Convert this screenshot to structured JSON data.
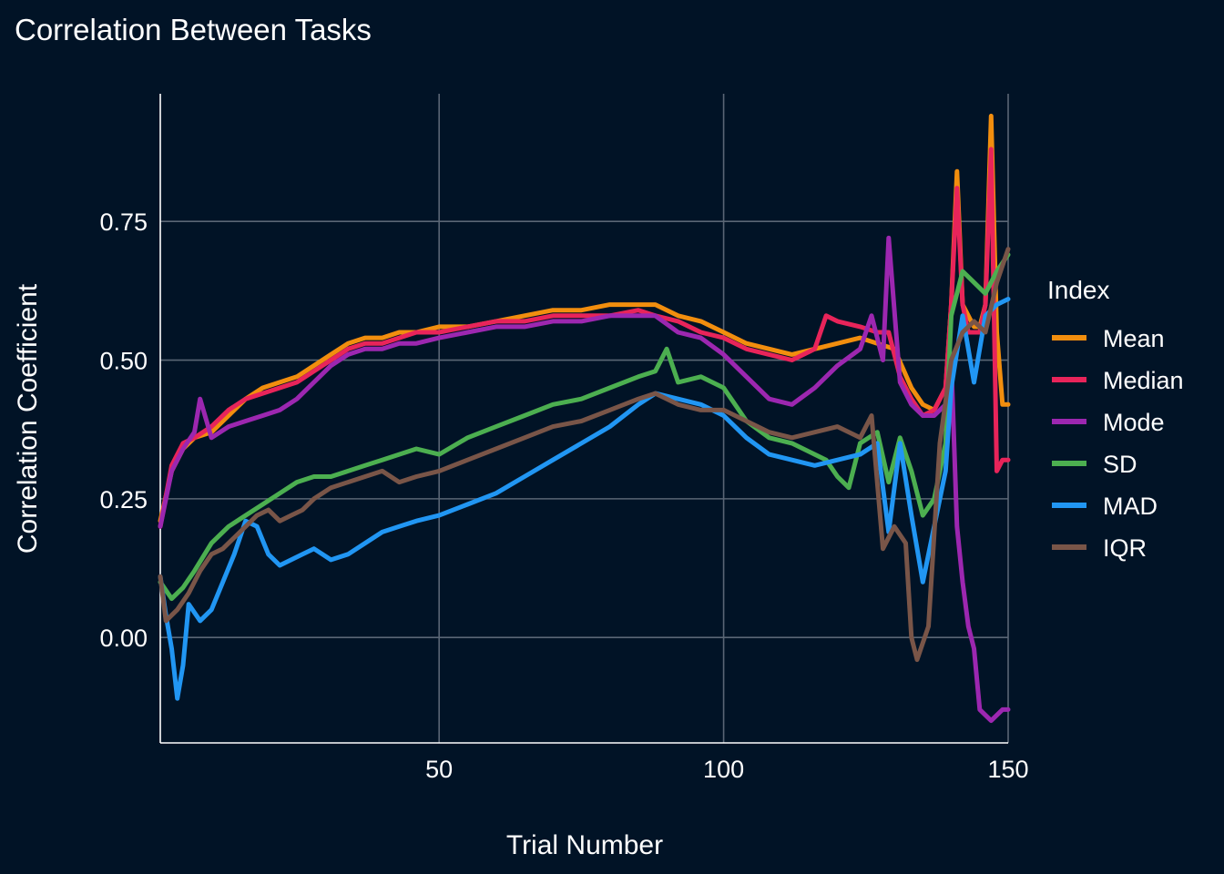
{
  "chart_data": {
    "type": "line",
    "title": "Correlation Between Tasks",
    "xlabel": "Trial Number",
    "ylabel": "Correlation Coefficient",
    "xlim": [
      1,
      150
    ],
    "ylim": [
      -0.19,
      0.98
    ],
    "x_ticks": [
      50,
      100,
      150
    ],
    "x_tick_labels": [
      "50",
      "100",
      "150"
    ],
    "y_ticks": [
      0,
      0.25,
      0.5,
      0.75
    ],
    "y_tick_labels": [
      "0.00",
      "0.25",
      "0.50",
      "0.75"
    ],
    "grid": true,
    "background": "#011326",
    "legend": {
      "title": "Index",
      "position": "right"
    },
    "series": [
      {
        "name": "Mean",
        "color": "#f28e0e",
        "points": [
          [
            1,
            0.21
          ],
          [
            3,
            0.3
          ],
          [
            5,
            0.34
          ],
          [
            7,
            0.36
          ],
          [
            10,
            0.37
          ],
          [
            13,
            0.4
          ],
          [
            16,
            0.43
          ],
          [
            19,
            0.45
          ],
          [
            22,
            0.46
          ],
          [
            25,
            0.47
          ],
          [
            28,
            0.49
          ],
          [
            31,
            0.51
          ],
          [
            34,
            0.53
          ],
          [
            37,
            0.54
          ],
          [
            40,
            0.54
          ],
          [
            43,
            0.55
          ],
          [
            46,
            0.55
          ],
          [
            50,
            0.56
          ],
          [
            55,
            0.56
          ],
          [
            60,
            0.57
          ],
          [
            65,
            0.58
          ],
          [
            70,
            0.59
          ],
          [
            75,
            0.59
          ],
          [
            80,
            0.6
          ],
          [
            85,
            0.6
          ],
          [
            88,
            0.6
          ],
          [
            92,
            0.58
          ],
          [
            96,
            0.57
          ],
          [
            100,
            0.55
          ],
          [
            104,
            0.53
          ],
          [
            108,
            0.52
          ],
          [
            112,
            0.51
          ],
          [
            116,
            0.52
          ],
          [
            120,
            0.53
          ],
          [
            124,
            0.54
          ],
          [
            127,
            0.53
          ],
          [
            130,
            0.52
          ],
          [
            133,
            0.45
          ],
          [
            135,
            0.42
          ],
          [
            137,
            0.41
          ],
          [
            139,
            0.45
          ],
          [
            140,
            0.6
          ],
          [
            141,
            0.84
          ],
          [
            142,
            0.6
          ],
          [
            144,
            0.56
          ],
          [
            145,
            0.56
          ],
          [
            146,
            0.6
          ],
          [
            147,
            0.94
          ],
          [
            148,
            0.55
          ],
          [
            149,
            0.42
          ],
          [
            150,
            0.42
          ]
        ]
      },
      {
        "name": "Median",
        "color": "#e8245a",
        "points": [
          [
            1,
            0.2
          ],
          [
            3,
            0.31
          ],
          [
            5,
            0.35
          ],
          [
            7,
            0.36
          ],
          [
            10,
            0.38
          ],
          [
            13,
            0.41
          ],
          [
            16,
            0.43
          ],
          [
            19,
            0.44
          ],
          [
            22,
            0.45
          ],
          [
            25,
            0.46
          ],
          [
            28,
            0.48
          ],
          [
            31,
            0.5
          ],
          [
            34,
            0.52
          ],
          [
            37,
            0.53
          ],
          [
            40,
            0.53
          ],
          [
            43,
            0.54
          ],
          [
            46,
            0.55
          ],
          [
            50,
            0.55
          ],
          [
            55,
            0.56
          ],
          [
            60,
            0.57
          ],
          [
            65,
            0.57
          ],
          [
            70,
            0.58
          ],
          [
            75,
            0.58
          ],
          [
            80,
            0.58
          ],
          [
            85,
            0.59
          ],
          [
            88,
            0.58
          ],
          [
            92,
            0.57
          ],
          [
            96,
            0.55
          ],
          [
            100,
            0.54
          ],
          [
            104,
            0.52
          ],
          [
            108,
            0.51
          ],
          [
            112,
            0.5
          ],
          [
            116,
            0.52
          ],
          [
            118,
            0.58
          ],
          [
            120,
            0.57
          ],
          [
            124,
            0.56
          ],
          [
            127,
            0.55
          ],
          [
            129,
            0.55
          ],
          [
            131,
            0.47
          ],
          [
            133,
            0.43
          ],
          [
            135,
            0.4
          ],
          [
            137,
            0.41
          ],
          [
            139,
            0.45
          ],
          [
            140,
            0.6
          ],
          [
            141,
            0.81
          ],
          [
            142,
            0.6
          ],
          [
            143,
            0.55
          ],
          [
            145,
            0.55
          ],
          [
            146,
            0.6
          ],
          [
            147,
            0.88
          ],
          [
            148,
            0.3
          ],
          [
            149,
            0.32
          ],
          [
            150,
            0.32
          ]
        ]
      },
      {
        "name": "Mode",
        "color": "#9c27b0",
        "points": [
          [
            1,
            0.2
          ],
          [
            3,
            0.3
          ],
          [
            5,
            0.34
          ],
          [
            7,
            0.37
          ],
          [
            8,
            0.43
          ],
          [
            10,
            0.36
          ],
          [
            13,
            0.38
          ],
          [
            16,
            0.39
          ],
          [
            19,
            0.4
          ],
          [
            22,
            0.41
          ],
          [
            25,
            0.43
          ],
          [
            28,
            0.46
          ],
          [
            31,
            0.49
          ],
          [
            34,
            0.51
          ],
          [
            37,
            0.52
          ],
          [
            40,
            0.52
          ],
          [
            43,
            0.53
          ],
          [
            46,
            0.53
          ],
          [
            50,
            0.54
          ],
          [
            55,
            0.55
          ],
          [
            60,
            0.56
          ],
          [
            65,
            0.56
          ],
          [
            70,
            0.57
          ],
          [
            75,
            0.57
          ],
          [
            80,
            0.58
          ],
          [
            85,
            0.58
          ],
          [
            88,
            0.58
          ],
          [
            92,
            0.55
          ],
          [
            96,
            0.54
          ],
          [
            100,
            0.51
          ],
          [
            104,
            0.47
          ],
          [
            108,
            0.43
          ],
          [
            112,
            0.42
          ],
          [
            116,
            0.45
          ],
          [
            120,
            0.49
          ],
          [
            124,
            0.52
          ],
          [
            126,
            0.58
          ],
          [
            128,
            0.5
          ],
          [
            129,
            0.72
          ],
          [
            131,
            0.46
          ],
          [
            133,
            0.42
          ],
          [
            135,
            0.4
          ],
          [
            137,
            0.4
          ],
          [
            139,
            0.42
          ],
          [
            140,
            0.5
          ],
          [
            141,
            0.2
          ],
          [
            142,
            0.1
          ],
          [
            143,
            0.02
          ],
          [
            144,
            -0.02
          ],
          [
            145,
            -0.13
          ],
          [
            147,
            -0.15
          ],
          [
            149,
            -0.13
          ],
          [
            150,
            -0.13
          ]
        ]
      },
      {
        "name": "SD",
        "color": "#4caf50",
        "points": [
          [
            1,
            0.1
          ],
          [
            3,
            0.07
          ],
          [
            5,
            0.09
          ],
          [
            7,
            0.12
          ],
          [
            10,
            0.17
          ],
          [
            13,
            0.2
          ],
          [
            16,
            0.22
          ],
          [
            19,
            0.24
          ],
          [
            22,
            0.26
          ],
          [
            25,
            0.28
          ],
          [
            28,
            0.29
          ],
          [
            31,
            0.29
          ],
          [
            34,
            0.3
          ],
          [
            37,
            0.31
          ],
          [
            40,
            0.32
          ],
          [
            43,
            0.33
          ],
          [
            46,
            0.34
          ],
          [
            50,
            0.33
          ],
          [
            55,
            0.36
          ],
          [
            60,
            0.38
          ],
          [
            65,
            0.4
          ],
          [
            70,
            0.42
          ],
          [
            75,
            0.43
          ],
          [
            80,
            0.45
          ],
          [
            85,
            0.47
          ],
          [
            88,
            0.48
          ],
          [
            90,
            0.52
          ],
          [
            92,
            0.46
          ],
          [
            96,
            0.47
          ],
          [
            100,
            0.45
          ],
          [
            104,
            0.39
          ],
          [
            108,
            0.36
          ],
          [
            112,
            0.35
          ],
          [
            116,
            0.33
          ],
          [
            118,
            0.32
          ],
          [
            120,
            0.29
          ],
          [
            122,
            0.27
          ],
          [
            124,
            0.35
          ],
          [
            127,
            0.37
          ],
          [
            129,
            0.28
          ],
          [
            131,
            0.36
          ],
          [
            133,
            0.3
          ],
          [
            135,
            0.22
          ],
          [
            137,
            0.25
          ],
          [
            139,
            0.35
          ],
          [
            140,
            0.58
          ],
          [
            142,
            0.66
          ],
          [
            144,
            0.64
          ],
          [
            146,
            0.62
          ],
          [
            148,
            0.66
          ],
          [
            150,
            0.69
          ]
        ]
      },
      {
        "name": "MAD",
        "color": "#2196f3",
        "points": [
          [
            1,
            0.11
          ],
          [
            2,
            0.04
          ],
          [
            3,
            -0.02
          ],
          [
            4,
            -0.11
          ],
          [
            5,
            -0.05
          ],
          [
            6,
            0.06
          ],
          [
            8,
            0.03
          ],
          [
            10,
            0.05
          ],
          [
            12,
            0.1
          ],
          [
            14,
            0.15
          ],
          [
            16,
            0.21
          ],
          [
            18,
            0.2
          ],
          [
            20,
            0.15
          ],
          [
            22,
            0.13
          ],
          [
            24,
            0.14
          ],
          [
            26,
            0.15
          ],
          [
            28,
            0.16
          ],
          [
            31,
            0.14
          ],
          [
            34,
            0.15
          ],
          [
            37,
            0.17
          ],
          [
            40,
            0.19
          ],
          [
            43,
            0.2
          ],
          [
            46,
            0.21
          ],
          [
            50,
            0.22
          ],
          [
            55,
            0.24
          ],
          [
            60,
            0.26
          ],
          [
            65,
            0.29
          ],
          [
            70,
            0.32
          ],
          [
            75,
            0.35
          ],
          [
            80,
            0.38
          ],
          [
            85,
            0.42
          ],
          [
            88,
            0.44
          ],
          [
            92,
            0.43
          ],
          [
            96,
            0.42
          ],
          [
            100,
            0.4
          ],
          [
            104,
            0.36
          ],
          [
            108,
            0.33
          ],
          [
            112,
            0.32
          ],
          [
            116,
            0.31
          ],
          [
            120,
            0.32
          ],
          [
            124,
            0.33
          ],
          [
            127,
            0.35
          ],
          [
            129,
            0.19
          ],
          [
            131,
            0.35
          ],
          [
            133,
            0.22
          ],
          [
            135,
            0.1
          ],
          [
            137,
            0.2
          ],
          [
            139,
            0.3
          ],
          [
            140,
            0.45
          ],
          [
            142,
            0.58
          ],
          [
            144,
            0.46
          ],
          [
            146,
            0.58
          ],
          [
            148,
            0.6
          ],
          [
            150,
            0.61
          ]
        ]
      },
      {
        "name": "IQR",
        "color": "#795548",
        "points": [
          [
            1,
            0.11
          ],
          [
            2,
            0.03
          ],
          [
            4,
            0.05
          ],
          [
            6,
            0.08
          ],
          [
            8,
            0.12
          ],
          [
            10,
            0.15
          ],
          [
            12,
            0.16
          ],
          [
            14,
            0.18
          ],
          [
            16,
            0.2
          ],
          [
            18,
            0.22
          ],
          [
            20,
            0.23
          ],
          [
            22,
            0.21
          ],
          [
            24,
            0.22
          ],
          [
            26,
            0.23
          ],
          [
            28,
            0.25
          ],
          [
            31,
            0.27
          ],
          [
            34,
            0.28
          ],
          [
            37,
            0.29
          ],
          [
            40,
            0.3
          ],
          [
            43,
            0.28
          ],
          [
            46,
            0.29
          ],
          [
            50,
            0.3
          ],
          [
            55,
            0.32
          ],
          [
            60,
            0.34
          ],
          [
            65,
            0.36
          ],
          [
            70,
            0.38
          ],
          [
            75,
            0.39
          ],
          [
            80,
            0.41
          ],
          [
            85,
            0.43
          ],
          [
            88,
            0.44
          ],
          [
            92,
            0.42
          ],
          [
            96,
            0.41
          ],
          [
            100,
            0.41
          ],
          [
            104,
            0.39
          ],
          [
            108,
            0.37
          ],
          [
            112,
            0.36
          ],
          [
            116,
            0.37
          ],
          [
            120,
            0.38
          ],
          [
            124,
            0.36
          ],
          [
            126,
            0.4
          ],
          [
            128,
            0.16
          ],
          [
            130,
            0.2
          ],
          [
            132,
            0.17
          ],
          [
            133,
            0.0
          ],
          [
            134,
            -0.04
          ],
          [
            136,
            0.02
          ],
          [
            138,
            0.35
          ],
          [
            140,
            0.5
          ],
          [
            142,
            0.55
          ],
          [
            144,
            0.57
          ],
          [
            146,
            0.55
          ],
          [
            148,
            0.64
          ],
          [
            150,
            0.7
          ]
        ]
      }
    ]
  }
}
